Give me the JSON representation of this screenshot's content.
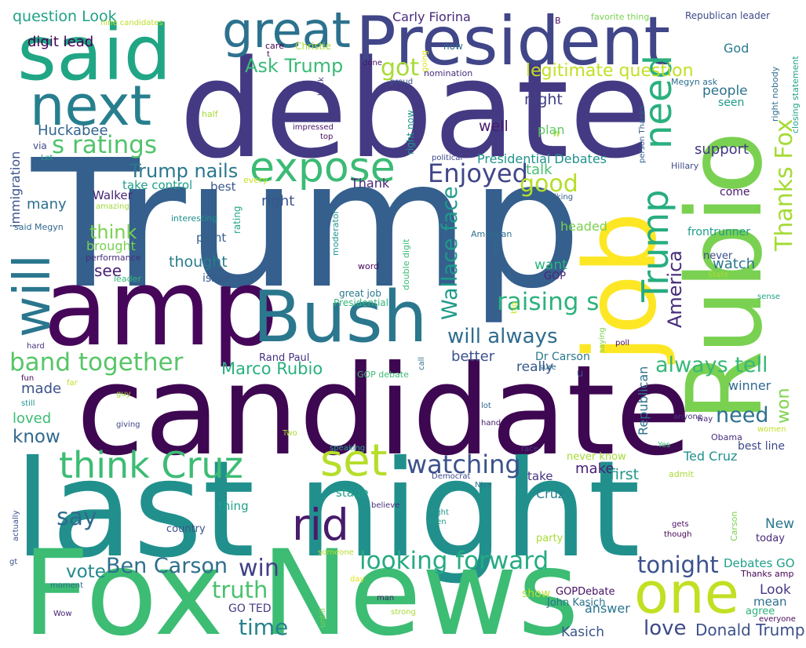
{
  "words": [
    {
      "text": "Trump",
      "color": "#355f8d"
    },
    {
      "text": "debate",
      "color": "#443a83"
    },
    {
      "text": "candidate",
      "color": "#3e0751"
    },
    {
      "text": "last night",
      "color": "#21908d"
    },
    {
      "text": "Fox News",
      "color": "#3dbc74"
    },
    {
      "text": "amp",
      "color": "#46075a"
    },
    {
      "text": "President",
      "color": "#404688"
    },
    {
      "text": "said",
      "color": "#21a685"
    },
    {
      "text": "Bush",
      "color": "#2a778e"
    },
    {
      "text": "Rubio",
      "color": "#7ad151"
    },
    {
      "text": "job",
      "color": "#fde725"
    },
    {
      "text": "next",
      "color": "#277f8e"
    },
    {
      "text": "great",
      "color": "#2c728e"
    },
    {
      "text": "one",
      "color": "#c2df23"
    },
    {
      "text": "set",
      "color": "#b5de2b"
    },
    {
      "text": "expose",
      "color": "#3bbb75"
    },
    {
      "text": "think Cruz",
      "color": "#3dbc74"
    },
    {
      "text": "rid",
      "color": "#481b6d"
    },
    {
      "text": "will",
      "color": "#2a768e"
    },
    {
      "text": "s ratings",
      "color": "#50c46a"
    },
    {
      "text": "Trump nails",
      "color": "#2a778e"
    },
    {
      "text": "Enjoyed",
      "color": "#404688"
    },
    {
      "text": "need",
      "color": "#2ab07f"
    },
    {
      "text": "Trump",
      "color": "#26ad81"
    },
    {
      "text": "looking forward",
      "color": "#25ab82"
    },
    {
      "text": "watching",
      "color": "#3b528b"
    },
    {
      "text": "band together",
      "color": "#56c667"
    },
    {
      "text": "raising s",
      "color": "#2db27d"
    },
    {
      "text": "Thanks Fox",
      "color": "#a5db36"
    },
    {
      "text": "will always",
      "color": "#2f6c8e"
    },
    {
      "text": "Ben Carson",
      "color": "#2e6e8e"
    },
    {
      "text": "tonight",
      "color": "#3b528b"
    },
    {
      "text": "truth",
      "color": "#4ac16d"
    },
    {
      "text": "always tell",
      "color": "#37b878"
    },
    {
      "text": "Ask Trump",
      "color": "#3aba76"
    },
    {
      "text": "got",
      "color": "#a8db34"
    },
    {
      "text": "legitimate question",
      "color": "#c2df23"
    },
    {
      "text": "Wallace face",
      "color": "#1f9a8a"
    },
    {
      "text": "Presidential Debates",
      "color": "#20928c"
    },
    {
      "text": "America",
      "color": "#472d7b"
    },
    {
      "text": "good",
      "color": "#b5de2b"
    },
    {
      "text": "say",
      "color": "#2f6b8e"
    },
    {
      "text": "win",
      "color": "#424086"
    },
    {
      "text": "time",
      "color": "#26828e"
    },
    {
      "text": "love",
      "color": "#3e4989"
    },
    {
      "text": "Donald Trump",
      "color": "#3c508b"
    },
    {
      "text": "need",
      "color": "#2c728e"
    },
    {
      "text": "won",
      "color": "#7fd34e"
    },
    {
      "text": "vote",
      "color": "#23898e"
    },
    {
      "text": "Marco Rubio",
      "color": "#2ab07f"
    },
    {
      "text": "think",
      "color": "#7ad151"
    },
    {
      "text": "Carly Fiorina",
      "color": "#482979"
    },
    {
      "text": "question Look",
      "color": "#1fa187"
    },
    {
      "text": "digit lead",
      "color": "#440154"
    },
    {
      "text": "Huckabee",
      "color": "#32648e"
    },
    {
      "text": "immigration",
      "color": "#3b528b"
    },
    {
      "text": "Walker",
      "color": "#482576"
    },
    {
      "text": "many",
      "color": "#2d708e"
    },
    {
      "text": "brought",
      "color": "#7ad151"
    },
    {
      "text": "thought",
      "color": "#287c8e"
    },
    {
      "text": "see",
      "color": "#482173"
    },
    {
      "text": "know",
      "color": "#31688e"
    },
    {
      "text": "loved",
      "color": "#3dbc74"
    },
    {
      "text": "made",
      "color": "#3b528b"
    },
    {
      "text": "night",
      "color": "#424086"
    },
    {
      "text": "well",
      "color": "#481b6d"
    },
    {
      "text": "plan",
      "color": "#5ec962"
    },
    {
      "text": "support",
      "color": "#443983"
    },
    {
      "text": "people",
      "color": "#2c728e"
    },
    {
      "text": "seen",
      "color": "#1f9a8a"
    },
    {
      "text": "God",
      "color": "#297a8e"
    },
    {
      "text": "talk",
      "color": "#46c06f"
    },
    {
      "text": "Thank",
      "color": "#482878"
    },
    {
      "text": "right",
      "color": "#3a548c"
    },
    {
      "text": "best",
      "color": "#39568c"
    },
    {
      "text": "take control",
      "color": "#1fa088"
    },
    {
      "text": "headed",
      "color": "#7ad151"
    },
    {
      "text": "frontrunner",
      "color": "#1e9c89"
    },
    {
      "text": "point",
      "color": "#355f8d"
    },
    {
      "text": "watch",
      "color": "#2b758e"
    },
    {
      "text": "come",
      "color": "#48186a"
    },
    {
      "text": "want",
      "color": "#2db27d"
    },
    {
      "text": "GOP",
      "color": "#482576"
    },
    {
      "text": "issue",
      "color": "#375a8c"
    },
    {
      "text": "never",
      "color": "#3e4c8a"
    },
    {
      "text": "better",
      "color": "#3b528b"
    },
    {
      "text": "really",
      "color": "#38588c"
    },
    {
      "text": "Dr Carson",
      "color": "#2a788e"
    },
    {
      "text": "winner",
      "color": "#31688e"
    },
    {
      "text": "make",
      "color": "#482173"
    },
    {
      "text": "first",
      "color": "#1f978b"
    },
    {
      "text": "Ted Cruz",
      "color": "#21918c"
    },
    {
      "text": "Cruz",
      "color": "#26828e"
    },
    {
      "text": "take",
      "color": "#46337f"
    },
    {
      "text": "Republican",
      "color": "#2c728e"
    },
    {
      "text": "best line",
      "color": "#3e4989"
    },
    {
      "text": "New",
      "color": "#2a788e"
    },
    {
      "text": "today",
      "color": "#482979"
    },
    {
      "text": "Debates GO",
      "color": "#1fa088"
    },
    {
      "text": "Look",
      "color": "#443a83"
    },
    {
      "text": "mean",
      "color": "#2e6e8e"
    },
    {
      "text": "agree",
      "color": "#2db27d"
    },
    {
      "text": "answer",
      "color": "#2a778e"
    },
    {
      "text": "Kasich",
      "color": "#3a548c"
    },
    {
      "text": "GO TED",
      "color": "#443983"
    },
    {
      "text": "John Kasich",
      "color": "#2b748e"
    },
    {
      "text": "GOPDebate",
      "color": "#471063"
    },
    {
      "text": "show",
      "color": "#b5de2b"
    },
    {
      "text": "stage",
      "color": "#1f9e89"
    },
    {
      "text": "thing",
      "color": "#1f9f88"
    },
    {
      "text": "country",
      "color": "#3b528b"
    },
    {
      "text": "party",
      "color": "#a8db34"
    },
    {
      "text": "Rand Paul",
      "color": "#46337f"
    },
    {
      "text": "GOP debate",
      "color": "#3bbb75"
    },
    {
      "text": "Presidential",
      "color": "#32b67a"
    },
    {
      "text": "great job",
      "color": "#2a788e"
    },
    {
      "text": "word",
      "color": "#46085c"
    },
    {
      "text": "performance",
      "color": "#472e7c"
    },
    {
      "text": "leader",
      "color": "#35b779"
    },
    {
      "text": "interesting",
      "color": "#21908d"
    },
    {
      "text": "rating",
      "color": "#20a386"
    },
    {
      "text": "moderator",
      "color": "#1f948c"
    },
    {
      "text": "double digit",
      "color": "#3bbb75"
    },
    {
      "text": "American",
      "color": "#2d708e"
    },
    {
      "text": "seem",
      "color": "#306a8e"
    },
    {
      "text": "said Megyn",
      "color": "#31688e"
    },
    {
      "text": "amazing",
      "color": "#a0da39"
    },
    {
      "text": "Let",
      "color": "#1f988b"
    },
    {
      "text": "via",
      "color": "#3e4a89"
    },
    {
      "text": "half",
      "color": "#a5db36"
    },
    {
      "text": "every",
      "color": "#cae11f"
    },
    {
      "text": "impressed",
      "color": "#481668"
    },
    {
      "text": "top",
      "color": "#470d60"
    },
    {
      "text": "political",
      "color": "#3f4889"
    },
    {
      "text": "right now",
      "color": "#1f968b"
    },
    {
      "text": "talking",
      "color": "#355f8d"
    },
    {
      "text": "person Thanks",
      "color": "#34608d"
    },
    {
      "text": "Hillary",
      "color": "#3e4989"
    },
    {
      "text": "Megyn ask",
      "color": "#2e6e8e"
    },
    {
      "text": "right nobody",
      "color": "#2f6c8e"
    },
    {
      "text": "closing statement",
      "color": "#20a386"
    },
    {
      "text": "Republican leader",
      "color": "#3e4a89"
    },
    {
      "text": "favorite thing",
      "color": "#7ad151"
    },
    {
      "text": "B",
      "color": "#46085c"
    },
    {
      "text": "nine candidates",
      "color": "#bddf26"
    },
    {
      "text": "Christie",
      "color": "#a8db34"
    },
    {
      "text": "care",
      "color": "#440154"
    },
    {
      "text": "t",
      "color": "#440154"
    },
    {
      "text": "done",
      "color": "#471365"
    },
    {
      "text": "going",
      "color": "#dde318"
    },
    {
      "text": "now",
      "color": "#31688e"
    },
    {
      "text": "nomination",
      "color": "#472f7d"
    },
    {
      "text": "proud",
      "color": "#3b528b"
    },
    {
      "text": "back",
      "color": "#46337f"
    },
    {
      "text": "W",
      "color": "#a8db34"
    },
    {
      "text": "hard",
      "color": "#472f7d"
    },
    {
      "text": "fun",
      "color": "#46085c"
    },
    {
      "text": "far",
      "color": "#c2df23"
    },
    {
      "text": "still",
      "color": "#21908d"
    },
    {
      "text": "guy",
      "color": "#a5db36"
    },
    {
      "text": "giving",
      "color": "#3f4788"
    },
    {
      "text": "Two",
      "color": "#a8db34"
    },
    {
      "text": "hand",
      "color": "#481b6d"
    },
    {
      "text": "lot",
      "color": "#32648e"
    },
    {
      "text": "speaking",
      "color": "#1fa187"
    },
    {
      "text": "Democrat",
      "color": "#3e4989"
    },
    {
      "text": "Nice",
      "color": "#2b758e"
    },
    {
      "text": "fight",
      "color": "#1f978b"
    },
    {
      "text": "even",
      "color": "#1f9a8a"
    },
    {
      "text": "believe",
      "color": "#472f7d"
    },
    {
      "text": "actually",
      "color": "#3b528b"
    },
    {
      "text": "gt",
      "color": "#3b528b"
    },
    {
      "text": "someone",
      "color": "#b5de2b"
    },
    {
      "text": "day",
      "color": "#dde318"
    },
    {
      "text": "moment",
      "color": "#2e6e8e"
    },
    {
      "text": "Wow",
      "color": "#482374"
    },
    {
      "text": "man",
      "color": "#481b6d"
    },
    {
      "text": "strong",
      "color": "#a5db36"
    },
    {
      "text": "untill",
      "color": "#7ad151"
    },
    {
      "text": "call",
      "color": "#2c728e"
    },
    {
      "text": "sure",
      "color": "#2e6e8e"
    },
    {
      "text": "u",
      "color": "#3b528b"
    },
    {
      "text": "race",
      "color": "#443983"
    },
    {
      "text": "never know",
      "color": "#a5db36"
    },
    {
      "text": "admit",
      "color": "#a8db34"
    },
    {
      "text": "Yes",
      "color": "#3bbb75"
    },
    {
      "text": "way",
      "color": "#482979"
    },
    {
      "text": "Obama",
      "color": "#472f7d"
    },
    {
      "text": "anyone",
      "color": "#46337f"
    },
    {
      "text": "women",
      "color": "#c2df23"
    },
    {
      "text": "Carson",
      "color": "#7ad151"
    },
    {
      "text": "gets",
      "color": "#471063"
    },
    {
      "text": "though",
      "color": "#440154"
    },
    {
      "text": "Thanks amp",
      "color": "#440154"
    },
    {
      "text": "everyone",
      "color": "#46085c"
    },
    {
      "text": "sense",
      "color": "#20a386"
    },
    {
      "text": "State",
      "color": "#a8db34"
    },
    {
      "text": "poll",
      "color": "#46085c"
    },
    {
      "text": "saying",
      "color": "#7ad151"
    },
    {
      "text": "big",
      "color": "#cae11f"
    },
    {
      "text": "DC",
      "color": "#355f8d"
    }
  ]
}
